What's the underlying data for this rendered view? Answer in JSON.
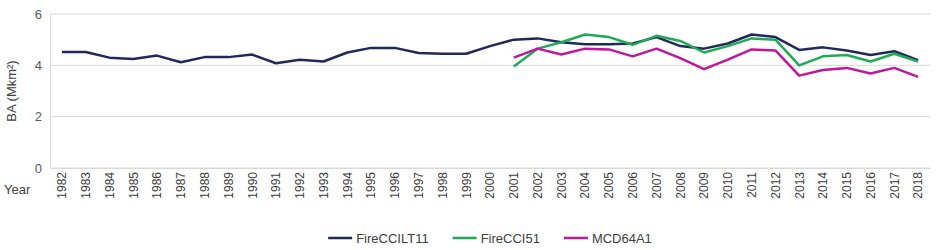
{
  "chart_data": {
    "type": "line",
    "y_label": "BA (Mkm²)",
    "x_label": "Year",
    "categories": [
      "1982",
      "1983",
      "1984",
      "1985",
      "1986",
      "1987",
      "1988",
      "1989",
      "1990",
      "1991",
      "1992",
      "1993",
      "1994",
      "1995",
      "1996",
      "1997",
      "1998",
      "1999",
      "2000",
      "2001",
      "2002",
      "2003",
      "2004",
      "2005",
      "2006",
      "2007",
      "2008",
      "2009",
      "2010",
      "2011",
      "2012",
      "2013",
      "2014",
      "2015",
      "2016",
      "2017",
      "2018"
    ],
    "series": [
      {
        "name": "FireCCILT11",
        "color": "#1f2a5a",
        "values": [
          4.52,
          4.52,
          4.3,
          4.25,
          4.38,
          4.12,
          4.32,
          4.32,
          4.42,
          4.08,
          4.22,
          4.15,
          4.5,
          4.68,
          4.68,
          4.48,
          4.45,
          4.45,
          4.75,
          5.0,
          5.05,
          4.9,
          4.82,
          4.82,
          4.85,
          5.1,
          4.75,
          4.65,
          4.85,
          5.2,
          5.1,
          4.6,
          4.7,
          4.58,
          4.4,
          4.55,
          4.2
        ]
      },
      {
        "name": "FireCCI51",
        "color": "#1faa55",
        "values": [
          null,
          null,
          null,
          null,
          null,
          null,
          null,
          null,
          null,
          null,
          null,
          null,
          null,
          null,
          null,
          null,
          null,
          null,
          null,
          3.95,
          4.65,
          4.9,
          5.2,
          5.1,
          4.8,
          5.15,
          4.95,
          4.5,
          4.75,
          5.05,
          5.0,
          4.0,
          4.35,
          4.4,
          4.15,
          4.45,
          4.15
        ]
      },
      {
        "name": "MCD64A1",
        "color": "#c0169e",
        "values": [
          null,
          null,
          null,
          null,
          null,
          null,
          null,
          null,
          null,
          null,
          null,
          null,
          null,
          null,
          null,
          null,
          null,
          null,
          null,
          4.3,
          4.65,
          4.42,
          4.65,
          4.62,
          4.35,
          4.65,
          4.28,
          3.85,
          4.22,
          4.62,
          4.58,
          3.6,
          3.82,
          3.9,
          3.68,
          3.9,
          3.55
        ]
      }
    ],
    "ylim": [
      0,
      6
    ],
    "yticks": [
      0,
      2,
      4,
      6
    ],
    "grid": true,
    "legend": "bottom"
  }
}
